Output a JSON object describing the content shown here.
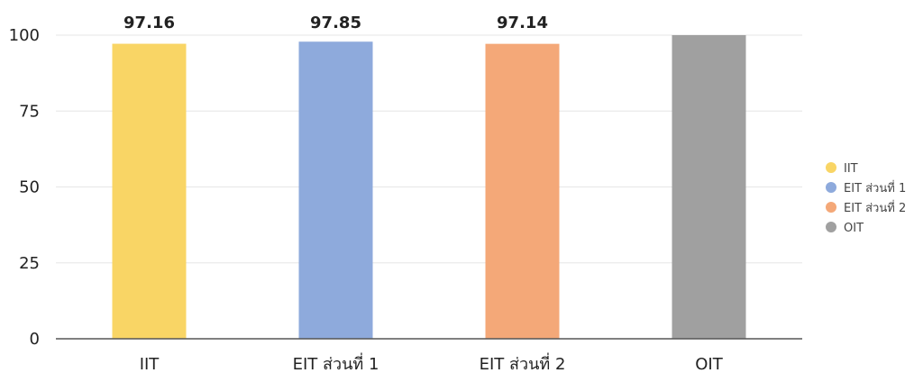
{
  "chart_data": {
    "type": "bar",
    "categories": [
      "IIT",
      "EIT ส่วนที่ 1",
      "EIT ส่วนที่ 2",
      "OIT"
    ],
    "values": [
      97.16,
      97.85,
      97.14,
      100
    ],
    "data_labels": [
      "97.16",
      "97.85",
      "97.14",
      ""
    ],
    "colors": [
      "#f9d565",
      "#8eaadc",
      "#f4a878",
      "#a0a0a0"
    ],
    "ylim": [
      0,
      100
    ],
    "yticks": [
      0,
      25,
      50,
      75,
      100
    ],
    "grid": true,
    "legend": {
      "position": "right",
      "entries": [
        "IIT",
        "EIT ส่วนที่ 1",
        "EIT ส่วนที่ 2",
        "OIT"
      ]
    },
    "title": "",
    "xlabel": "",
    "ylabel": ""
  }
}
